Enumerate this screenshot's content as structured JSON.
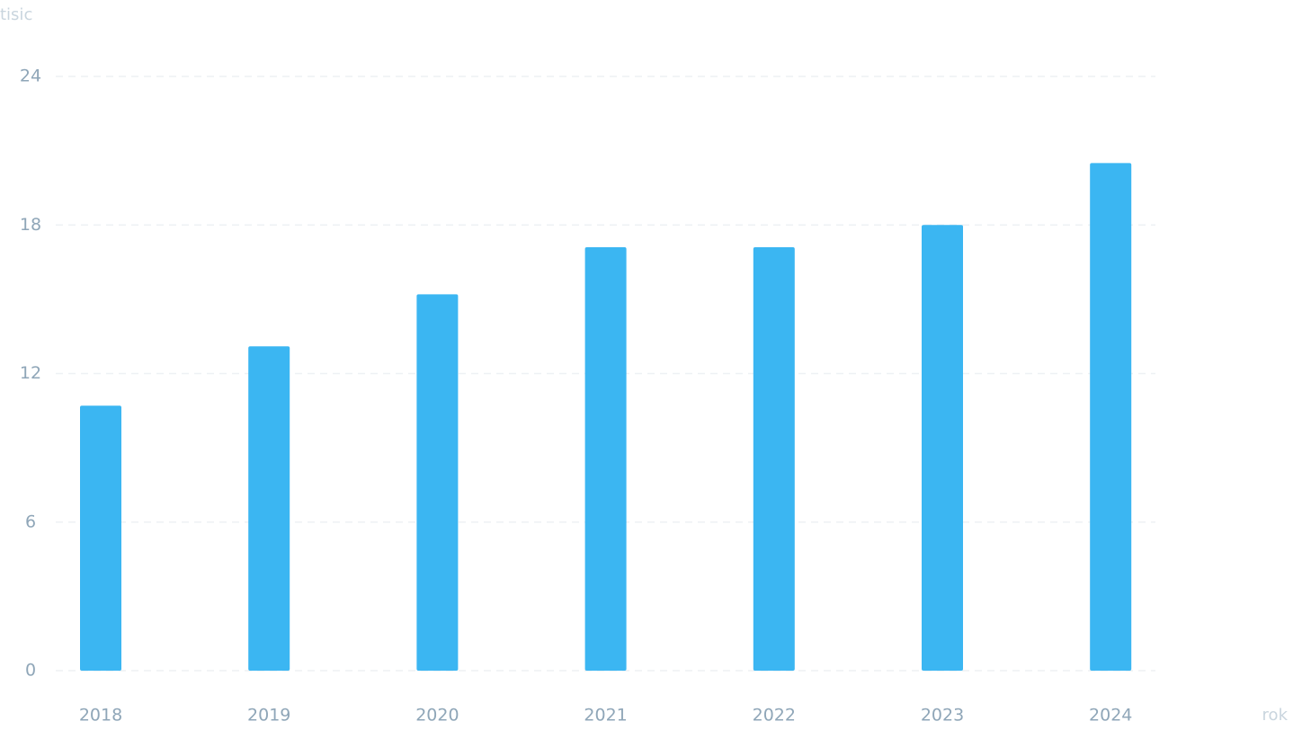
{
  "chart_data": {
    "type": "bar",
    "y_label": "tisic",
    "x_label": "rok",
    "categories": [
      "2018",
      "2019",
      "2020",
      "2021",
      "2022",
      "2023",
      "2024"
    ],
    "values": [
      10.7,
      13.1,
      15.2,
      17.1,
      17.1,
      18.0,
      20.5
    ],
    "color": "#3bb6f2",
    "ylim": [
      0,
      24
    ],
    "yticks": [
      0,
      6,
      12,
      18,
      24
    ],
    "grid": true
  }
}
